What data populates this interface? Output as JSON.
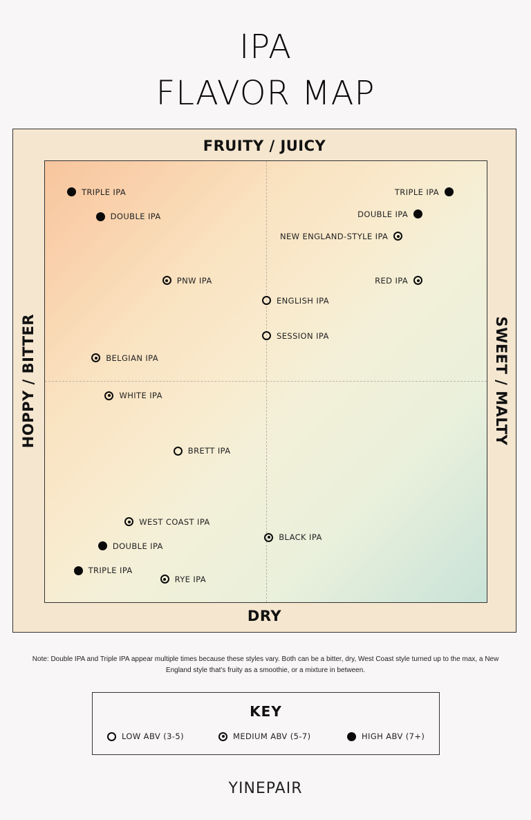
{
  "title": {
    "line1": "IPA",
    "line2": "FLAVOR MAP"
  },
  "axes": {
    "top": "FRUITY / JUICY",
    "bottom": "DRY",
    "left": "HOPPY / BITTER",
    "right": "SWEET / MALTY"
  },
  "note": "Note: Double IPA and Triple IPA appear multiple times because these styles vary. Both can be a bitter, dry, West Coast style turned up to the max, a New England style that's fruity as a smoothie, or a mixture in between.",
  "key": {
    "title": "KEY",
    "items": [
      {
        "id": "low",
        "label": "LOW ABV (3-5)"
      },
      {
        "id": "medium",
        "label": "MEDIUM ABV (5-7)"
      },
      {
        "id": "high",
        "label": "HIGH ABV (7+)"
      }
    ]
  },
  "logo": "YINEPAIR",
  "chart_data": {
    "type": "scatter",
    "title": "IPA FLAVOR MAP",
    "xlabel": "HOPPY / BITTER (left)  ↔  SWEET / MALTY (right)",
    "ylabel": "DRY (bottom)  ↔  FRUITY / JUICY (top)",
    "xlim": [
      -10,
      10
    ],
    "ylim": [
      -10,
      10
    ],
    "grid": "center crosshair (dashed)",
    "legend": [
      "LOW ABV (3-5)",
      "MEDIUM ABV (5-7)",
      "HIGH ABV (7+)"
    ],
    "legend_position": "below chart",
    "points": [
      {
        "label": "TRIPLE IPA",
        "abv": "high",
        "x": -8.8,
        "y": 8.6,
        "label_side": "right"
      },
      {
        "label": "DOUBLE IPA",
        "abv": "high",
        "x": -7.5,
        "y": 7.5,
        "label_side": "right"
      },
      {
        "label": "PNW IPA",
        "abv": "medium",
        "x": -4.5,
        "y": 4.6,
        "label_side": "right"
      },
      {
        "label": "TRIPLE IPA",
        "abv": "high",
        "x": 8.3,
        "y": 8.6,
        "label_side": "left"
      },
      {
        "label": "DOUBLE IPA",
        "abv": "high",
        "x": 6.9,
        "y": 7.6,
        "label_side": "left"
      },
      {
        "label": "NEW ENGLAND-STYLE IPA",
        "abv": "medium",
        "x": 6.0,
        "y": 6.6,
        "label_side": "left"
      },
      {
        "label": "RED IPA",
        "abv": "medium",
        "x": 6.9,
        "y": 4.6,
        "label_side": "left"
      },
      {
        "label": "ENGLISH IPA",
        "abv": "low",
        "x": 0.0,
        "y": 3.7,
        "label_side": "right"
      },
      {
        "label": "SESSION IPA",
        "abv": "low",
        "x": 0.0,
        "y": 2.1,
        "label_side": "right"
      },
      {
        "label": "BELGIAN IPA",
        "abv": "medium",
        "x": -7.7,
        "y": 1.1,
        "label_side": "right"
      },
      {
        "label": "WHITE IPA",
        "abv": "medium",
        "x": -7.1,
        "y": -0.6,
        "label_side": "right"
      },
      {
        "label": "BRETT IPA",
        "abv": "low",
        "x": -4.0,
        "y": -3.1,
        "label_side": "right"
      },
      {
        "label": "WEST COAST IPA",
        "abv": "medium",
        "x": -6.2,
        "y": -6.3,
        "label_side": "right"
      },
      {
        "label": "BLACK IPA",
        "abv": "medium",
        "x": 0.1,
        "y": -7.0,
        "label_side": "right"
      },
      {
        "label": "DOUBLE IPA",
        "abv": "high",
        "x": -7.4,
        "y": -7.4,
        "label_side": "right"
      },
      {
        "label": "TRIPLE IPA",
        "abv": "high",
        "x": -8.5,
        "y": -8.5,
        "label_side": "right"
      },
      {
        "label": "RYE IPA",
        "abv": "medium",
        "x": -4.6,
        "y": -8.9,
        "label_side": "right"
      }
    ]
  }
}
